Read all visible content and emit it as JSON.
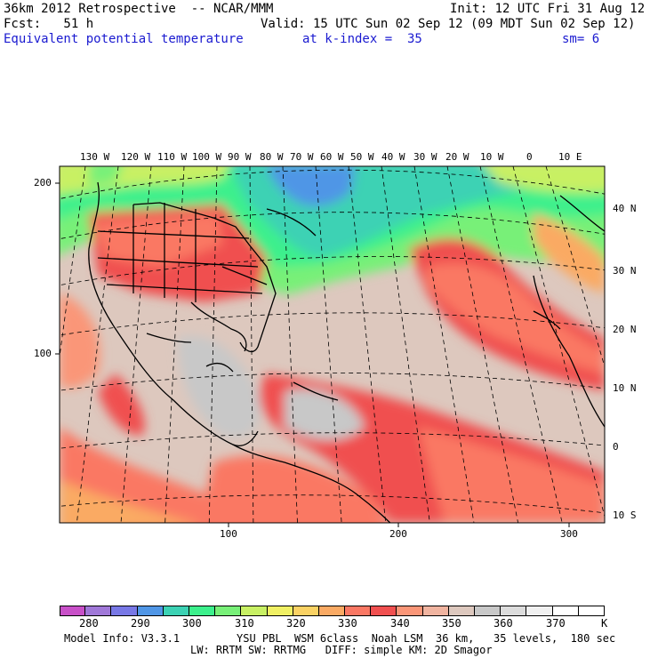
{
  "header": {
    "line1_left": "36km 2012 Retrospective  -- NCAR/MMM",
    "line1_right": "Init: 12 UTC Fri 31 Aug 12",
    "line2_left": "Fcst:   51 h",
    "line2_right": "Valid: 15 UTC Sun 02 Sep 12 (09 MDT Sun 02 Sep 12)",
    "field_name": "Equivalent potential temperature",
    "level": "at k-index =  35",
    "smoothing": "sm= 6"
  },
  "map": {
    "longitude_labels": [
      "130 W",
      "120 W",
      "110 W",
      "100 W",
      "90 W",
      "80 W",
      "70 W",
      "60 W",
      "50 W",
      "40 W",
      "30 W",
      "20 W",
      "10 W",
      "0",
      "10 E"
    ],
    "latitude_labels": [
      "40 N",
      "30 N",
      "20 N",
      "10 N",
      "0",
      "10 S"
    ],
    "grid_y_labels": [
      "200",
      "100"
    ],
    "grid_x_labels": [
      "100",
      "200",
      "300"
    ]
  },
  "colorbar": {
    "colors": [
      "#c850c8",
      "#a078d8",
      "#7878e6",
      "#5096e6",
      "#3cd2b4",
      "#3cf08c",
      "#78f078",
      "#c8f064",
      "#f0f064",
      "#fad264",
      "#faaa64",
      "#fa7864",
      "#f05050",
      "#fa9678",
      "#f0b4a0",
      "#ddc8be",
      "#c8c8c8",
      "#dcdcdc",
      "#f0f0f0",
      "#ffffff",
      "#ffffff"
    ],
    "labels": [
      "280",
      "290",
      "300",
      "310",
      "320",
      "330",
      "340",
      "350",
      "360",
      "370"
    ],
    "units": "K"
  },
  "footer": {
    "line1_left": "Model Info: V3.3.1",
    "line1_right": "YSU PBL  WSM 6class  Noah LSM  36 km,   35 levels,  180 sec",
    "line2": "LW: RRTM SW: RRTMG   DIFF: simple KM: 2D Smagor"
  }
}
